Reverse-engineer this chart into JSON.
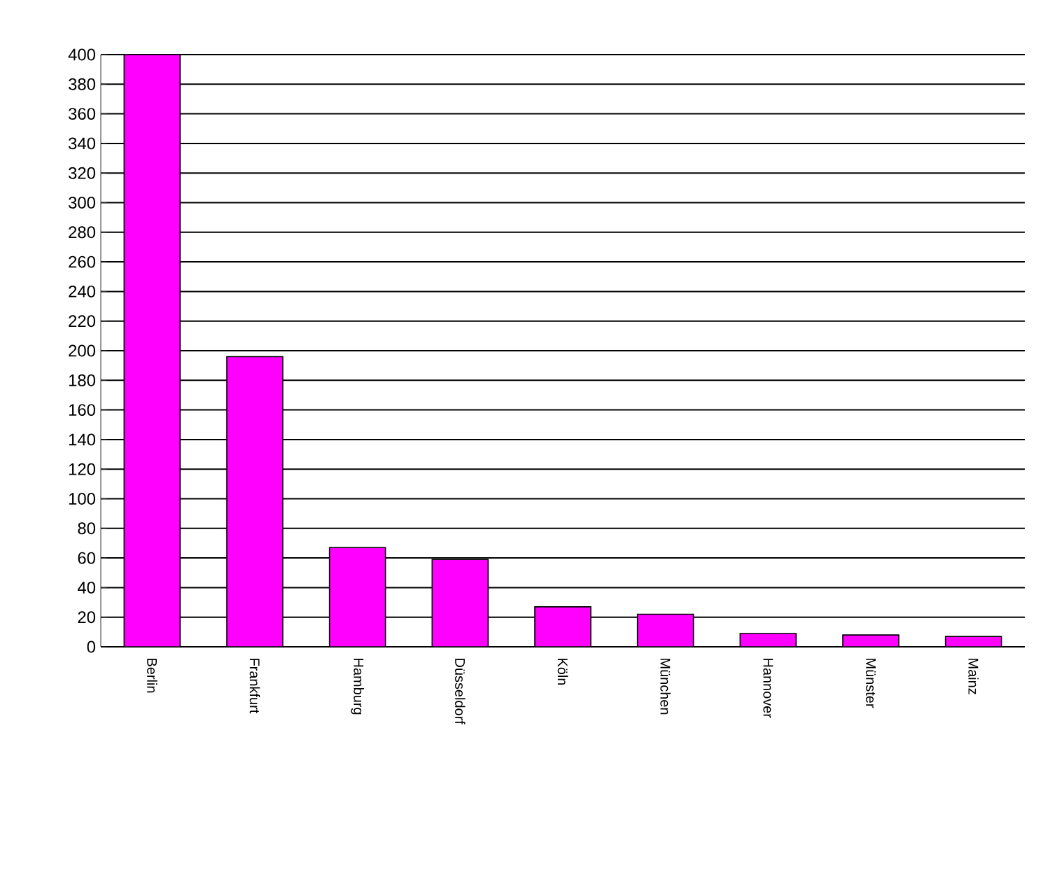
{
  "chart_data": {
    "type": "bar",
    "categories": [
      "Berlin",
      "Frankfurt",
      "Hamburg",
      "Düsseldorf",
      "Köln",
      "München",
      "Hannover",
      "Münster",
      "Mainz"
    ],
    "values": [
      400,
      196,
      67,
      59,
      27,
      22,
      9,
      8,
      7
    ],
    "color": "#ff00ff",
    "ylim": [
      0,
      400
    ],
    "yticks": [
      0,
      20,
      40,
      60,
      80,
      100,
      120,
      140,
      160,
      180,
      200,
      220,
      240,
      260,
      280,
      300,
      320,
      340,
      360,
      380,
      400
    ],
    "grid": "y"
  }
}
